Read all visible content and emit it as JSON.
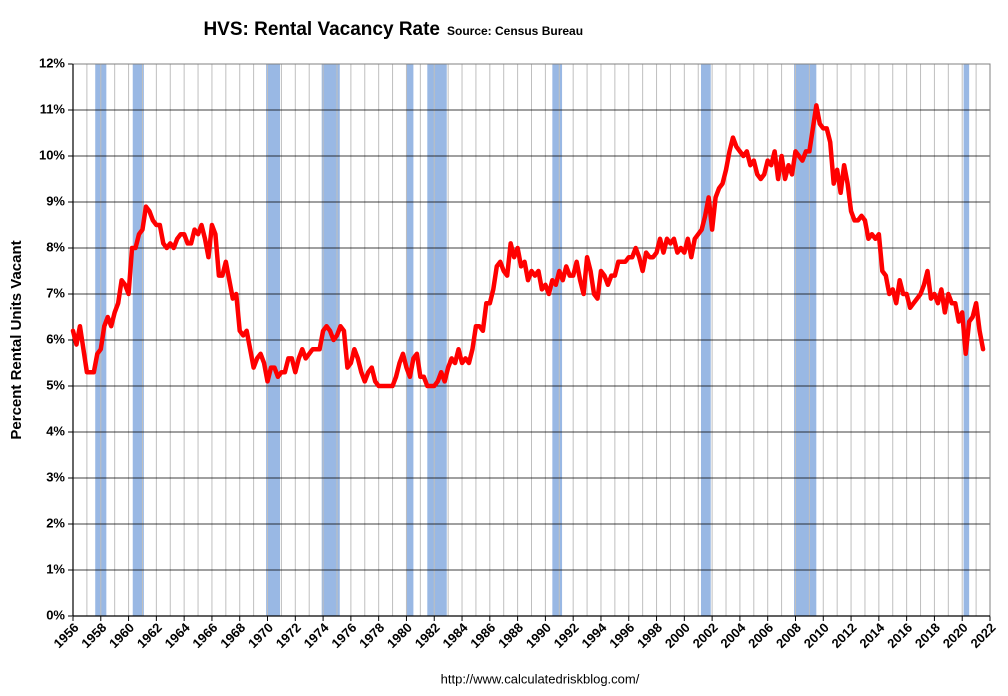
{
  "chart_data": {
    "type": "line",
    "title": "HVS: Rental Vacancy Rate",
    "subtitle": "Source: Census Bureau",
    "ylabel": "Percent Rental Units Vacant",
    "footer": "http://www.calculatedriskblog.com/",
    "color": "#ff0000",
    "band_color": "#99b8e4",
    "grid": true,
    "xlim": [
      1956,
      2022
    ],
    "ylim": [
      0,
      12
    ],
    "yticks": [
      {
        "value": 0,
        "label": "0%"
      },
      {
        "value": 1,
        "label": "1%"
      },
      {
        "value": 2,
        "label": "2%"
      },
      {
        "value": 3,
        "label": "3%"
      },
      {
        "value": 4,
        "label": "4%"
      },
      {
        "value": 5,
        "label": "5%"
      },
      {
        "value": 6,
        "label": "6%"
      },
      {
        "value": 7,
        "label": "7%"
      },
      {
        "value": 8,
        "label": "8%"
      },
      {
        "value": 9,
        "label": "9%"
      },
      {
        "value": 10,
        "label": "10%"
      },
      {
        "value": 11,
        "label": "11%"
      },
      {
        "value": 12,
        "label": "12%"
      }
    ],
    "xticks": [
      1956,
      1958,
      1960,
      1962,
      1964,
      1966,
      1968,
      1970,
      1972,
      1974,
      1976,
      1978,
      1980,
      1982,
      1984,
      1986,
      1988,
      1990,
      1992,
      1994,
      1996,
      1998,
      2000,
      2002,
      2004,
      2006,
      2008,
      2010,
      2012,
      2014,
      2016,
      2018,
      2020,
      2022
    ],
    "xminorticks": [
      1957,
      1959,
      1961,
      1963,
      1965,
      1967,
      1969,
      1971,
      1973,
      1975,
      1977,
      1979,
      1981,
      1983,
      1985,
      1987,
      1989,
      1991,
      1993,
      1995,
      1997,
      1999,
      2001,
      2003,
      2005,
      2007,
      2009,
      2011,
      2013,
      2015,
      2017,
      2019,
      2021
    ],
    "recessions": [
      [
        1957.6,
        1958.4
      ],
      [
        1960.3,
        1961.1
      ],
      [
        1969.9,
        1970.9
      ],
      [
        1973.9,
        1975.2
      ],
      [
        1980.0,
        1980.5
      ],
      [
        1981.5,
        1982.9
      ],
      [
        1990.5,
        1991.2
      ],
      [
        2001.2,
        2001.9
      ],
      [
        2007.9,
        2009.5
      ],
      [
        2020.1,
        2020.5
      ]
    ],
    "x": [
      1956.0,
      1956.25,
      1956.5,
      1956.75,
      1957.0,
      1957.5,
      1957.75,
      1958.0,
      1958.25,
      1958.5,
      1958.75,
      1959.0,
      1959.25,
      1959.5,
      1959.75,
      1960.0,
      1960.25,
      1960.5,
      1960.75,
      1961.0,
      1961.25,
      1961.5,
      1961.75,
      1962.0,
      1962.25,
      1962.5,
      1962.75,
      1963.0,
      1963.25,
      1963.5,
      1963.75,
      1964.0,
      1964.25,
      1964.5,
      1964.75,
      1965.0,
      1965.25,
      1965.5,
      1965.75,
      1966.0,
      1966.25,
      1966.5,
      1966.75,
      1967.0,
      1967.25,
      1967.5,
      1967.75,
      1968.0,
      1968.25,
      1968.5,
      1968.75,
      1969.0,
      1969.25,
      1969.5,
      1969.75,
      1970.0,
      1970.25,
      1970.5,
      1970.75,
      1971.0,
      1971.25,
      1971.5,
      1971.75,
      1972.0,
      1972.25,
      1972.5,
      1972.75,
      1973.0,
      1973.25,
      1973.5,
      1973.75,
      1974.0,
      1974.25,
      1974.5,
      1974.75,
      1975.0,
      1975.25,
      1975.5,
      1975.75,
      1976.0,
      1976.25,
      1976.5,
      1976.75,
      1977.0,
      1977.25,
      1977.5,
      1977.75,
      1978.0,
      1978.5,
      1979.0,
      1979.25,
      1979.5,
      1979.75,
      1980.0,
      1980.25,
      1980.5,
      1980.75,
      1981.0,
      1981.25,
      1981.5,
      1981.75,
      1982.0,
      1982.25,
      1982.5,
      1982.75,
      1983.0,
      1983.25,
      1983.5,
      1983.75,
      1984.0,
      1984.25,
      1984.5,
      1984.75,
      1985.0,
      1985.25,
      1985.5,
      1985.75,
      1986.0,
      1986.25,
      1986.5,
      1986.75,
      1987.0,
      1987.25,
      1987.5,
      1987.75,
      1988.0,
      1988.25,
      1988.5,
      1988.75,
      1989.0,
      1989.25,
      1989.5,
      1989.75,
      1990.0,
      1990.25,
      1990.5,
      1990.75,
      1991.0,
      1991.25,
      1991.5,
      1991.75,
      1992.0,
      1992.25,
      1992.5,
      1992.75,
      1993.0,
      1993.25,
      1993.5,
      1993.75,
      1994.0,
      1994.25,
      1994.5,
      1994.75,
      1995.0,
      1995.25,
      1995.5,
      1995.75,
      1996.0,
      1996.25,
      1996.5,
      1996.75,
      1997.0,
      1997.25,
      1997.5,
      1997.75,
      1998.0,
      1998.25,
      1998.5,
      1998.75,
      1999.0,
      1999.25,
      1999.5,
      1999.75,
      2000.0,
      2000.25,
      2000.5,
      2000.75,
      2001.0,
      2001.25,
      2001.5,
      2001.75,
      2002.0,
      2002.25,
      2002.5,
      2002.75,
      2003.0,
      2003.25,
      2003.5,
      2003.75,
      2004.0,
      2004.25,
      2004.5,
      2004.75,
      2005.0,
      2005.25,
      2005.5,
      2005.75,
      2006.0,
      2006.25,
      2006.5,
      2006.75,
      2007.0,
      2007.25,
      2007.5,
      2007.75,
      2008.0,
      2008.25,
      2008.5,
      2008.75,
      2009.0,
      2009.25,
      2009.5,
      2009.75,
      2010.0,
      2010.25,
      2010.5,
      2010.75,
      2011.0,
      2011.25,
      2011.5,
      2011.75,
      2012.0,
      2012.25,
      2012.5,
      2012.75,
      2013.0,
      2013.25,
      2013.5,
      2013.75,
      2014.0,
      2014.25,
      2014.5,
      2014.75,
      2015.0,
      2015.25,
      2015.5,
      2015.75,
      2016.0,
      2016.25,
      2016.5,
      2016.75,
      2017.0,
      2017.25,
      2017.5,
      2017.75,
      2018.0,
      2018.25,
      2018.5,
      2018.75,
      2019.0,
      2019.25,
      2019.5,
      2019.75,
      2020.0,
      2020.25,
      2020.5,
      2020.75,
      2021.0,
      2021.25,
      2021.5
    ],
    "values": [
      6.2,
      5.9,
      6.3,
      5.8,
      5.3,
      5.3,
      5.7,
      5.8,
      6.3,
      6.5,
      6.3,
      6.6,
      6.8,
      7.3,
      7.2,
      7.0,
      8.0,
      8.0,
      8.3,
      8.4,
      8.9,
      8.8,
      8.6,
      8.5,
      8.5,
      8.1,
      8.0,
      8.1,
      8.0,
      8.2,
      8.3,
      8.3,
      8.1,
      8.1,
      8.4,
      8.3,
      8.5,
      8.2,
      7.8,
      8.5,
      8.3,
      7.4,
      7.4,
      7.7,
      7.3,
      6.9,
      7.0,
      6.2,
      6.1,
      6.2,
      5.8,
      5.4,
      5.6,
      5.7,
      5.5,
      5.1,
      5.4,
      5.4,
      5.2,
      5.3,
      5.3,
      5.6,
      5.6,
      5.3,
      5.6,
      5.8,
      5.6,
      5.7,
      5.8,
      5.8,
      5.8,
      6.2,
      6.3,
      6.2,
      6.0,
      6.1,
      6.3,
      6.2,
      5.4,
      5.5,
      5.8,
      5.6,
      5.3,
      5.1,
      5.3,
      5.4,
      5.1,
      5.0,
      5.0,
      5.0,
      5.2,
      5.5,
      5.7,
      5.4,
      5.2,
      5.6,
      5.7,
      5.2,
      5.2,
      5.0,
      5.0,
      5.0,
      5.1,
      5.3,
      5.1,
      5.4,
      5.6,
      5.5,
      5.8,
      5.5,
      5.6,
      5.5,
      5.8,
      6.3,
      6.3,
      6.2,
      6.8,
      6.8,
      7.1,
      7.6,
      7.7,
      7.5,
      7.4,
      8.1,
      7.8,
      8.0,
      7.6,
      7.7,
      7.3,
      7.5,
      7.4,
      7.5,
      7.1,
      7.2,
      7.0,
      7.3,
      7.2,
      7.5,
      7.3,
      7.6,
      7.4,
      7.4,
      7.7,
      7.3,
      7.0,
      7.8,
      7.5,
      7.0,
      6.9,
      7.5,
      7.4,
      7.2,
      7.4,
      7.4,
      7.7,
      7.7,
      7.7,
      7.8,
      7.8,
      8.0,
      7.8,
      7.5,
      7.9,
      7.8,
      7.8,
      7.9,
      8.2,
      7.9,
      8.2,
      8.1,
      8.2,
      7.9,
      8.0,
      7.9,
      8.2,
      7.8,
      8.2,
      8.3,
      8.4,
      8.7,
      9.1,
      8.4,
      9.1,
      9.3,
      9.4,
      9.7,
      10.1,
      10.4,
      10.2,
      10.1,
      10.0,
      10.1,
      9.8,
      9.9,
      9.6,
      9.5,
      9.6,
      9.9,
      9.8,
      10.1,
      9.5,
      10.0,
      9.5,
      9.8,
      9.6,
      10.1,
      10.0,
      9.9,
      10.1,
      10.1,
      10.6,
      11.1,
      10.7,
      10.6,
      10.6,
      10.3,
      9.4,
      9.7,
      9.2,
      9.8,
      9.4,
      8.8,
      8.6,
      8.6,
      8.7,
      8.6,
      8.2,
      8.3,
      8.2,
      8.3,
      7.5,
      7.4,
      7.0,
      7.1,
      6.8,
      7.3,
      7.0,
      7.0,
      6.7,
      6.8,
      6.9,
      7.0,
      7.2,
      7.5,
      6.9,
      7.0,
      6.8,
      7.1,
      6.6,
      7.0,
      6.8,
      6.8,
      6.4,
      6.6,
      5.7,
      6.4,
      6.5,
      6.8,
      6.2,
      5.8
    ]
  }
}
